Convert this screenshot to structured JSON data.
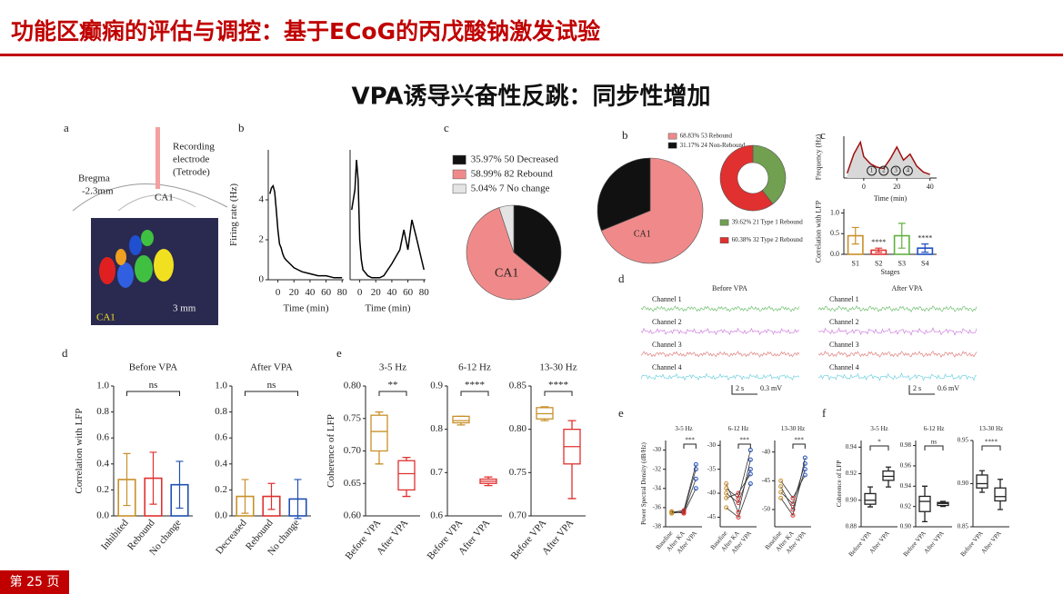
{
  "header": {
    "title": "功能区癫痫的评估与调控：基于ECoG的丙戊酸钠激发试验"
  },
  "slide_title": "VPA诱导兴奋性反跳：同步性增加",
  "page_number": "第 25 页",
  "figures": [
    {
      "type": "schematic",
      "label": "a",
      "texts": [
        "Recording",
        "electrode",
        "(Tetrode)",
        "Bregma",
        "-2.3mm",
        "CA1",
        "CA1",
        "3 mm"
      ]
    },
    {
      "type": "line",
      "label": "b",
      "y_label": "Firing rate (Hz)",
      "x_label": "Time (min)",
      "color": "#000000",
      "x": [
        -10,
        -8,
        -6,
        -4,
        -2,
        0,
        2,
        4,
        6,
        8,
        10,
        15,
        20,
        25,
        30,
        40,
        50,
        60,
        70,
        80
      ],
      "values": [
        4.3,
        4.6,
        4.7,
        4.4,
        3.5,
        2.5,
        1.8,
        1.6,
        1.3,
        1.1,
        1.0,
        0.8,
        0.6,
        0.5,
        0.4,
        0.3,
        0.2,
        0.2,
        0.1,
        0.1
      ],
      "xlim": [
        -12,
        82
      ],
      "ylim": [
        0,
        6.5
      ],
      "xticks": [
        0,
        20,
        40,
        60,
        80
      ],
      "yticks": [
        0,
        2,
        4
      ]
    },
    {
      "type": "line",
      "x_label": "Time (min)",
      "color": "#000000",
      "x": [
        -10,
        -8,
        -6,
        -4,
        -2,
        0,
        2,
        4,
        6,
        8,
        10,
        15,
        20,
        25,
        30,
        40,
        50,
        55,
        60,
        65,
        70,
        80
      ],
      "values": [
        3.5,
        4.0,
        4.5,
        6.0,
        5.0,
        2.0,
        1.0,
        0.5,
        0.4,
        0.3,
        0.2,
        0.1,
        0.1,
        0.1,
        0.2,
        0.8,
        1.5,
        2.5,
        1.5,
        3.0,
        2.2,
        0.5
      ],
      "xlim": [
        -12,
        82
      ],
      "ylim": [
        0,
        6.5
      ],
      "xticks": [
        0,
        20,
        40,
        60,
        80
      ]
    },
    {
      "type": "pie",
      "label": "c",
      "center_text": "CA1",
      "values": [
        35.97,
        58.99,
        5.04
      ],
      "labels": [
        "35.97% 50 Decreased",
        "58.99% 82 Rebound",
        "5.04% 7 No change"
      ],
      "colors": [
        "#111111",
        "#f08a8a",
        "#e4e4e4"
      ]
    },
    {
      "type": "bar",
      "label": "d",
      "title": "Before VPA",
      "y_label": "Correlation with LFP",
      "categories": [
        "Inhibited",
        "Rebound",
        "No change"
      ],
      "values": [
        0.28,
        0.29,
        0.24
      ],
      "errors": [
        0.2,
        0.2,
        0.18
      ],
      "colors": [
        "#c8902a",
        "#e03030",
        "#2050b0"
      ],
      "comparison": "ns",
      "ylim": [
        0,
        1
      ],
      "yticks": [
        {
          "value": 0,
          "label": "0.0"
        },
        {
          "value": 0.2,
          "label": "0.2"
        },
        {
          "value": 0.4,
          "label": "0.4"
        },
        {
          "value": 0.6,
          "label": "0.6"
        },
        {
          "value": 0.8,
          "label": "0.8"
        },
        {
          "value": 1,
          "label": "1.0"
        }
      ]
    },
    {
      "type": "bar",
      "title": "After VPA",
      "categories": [
        "Decreased",
        "Rebound",
        "No change"
      ],
      "values": [
        0.15,
        0.15,
        0.13
      ],
      "errors": [
        0.13,
        0.1,
        0.15
      ],
      "colors": [
        "#c8902a",
        "#e03030",
        "#2050b0"
      ],
      "comparison": "ns",
      "ylim": [
        0,
        1
      ],
      "yticks": [
        {
          "value": 0,
          "label": "0.0"
        },
        {
          "value": 0.2,
          "label": "0.2"
        },
        {
          "value": 0.4,
          "label": "0.4"
        },
        {
          "value": 0.6,
          "label": "0.6"
        },
        {
          "value": 0.8,
          "label": "0.8"
        },
        {
          "value": 1,
          "label": "1.0"
        }
      ]
    },
    {
      "type": "box",
      "label": "e",
      "title": "3-5 Hz",
      "y_label": "Coherence of LFP",
      "significance": "**",
      "categories": [
        "Before VPA",
        "After VPA"
      ],
      "colors": [
        "#c8902a",
        "#e03030"
      ],
      "boxes": [
        [
          0.68,
          0.7,
          0.73,
          0.755,
          0.76
        ],
        [
          0.63,
          0.64,
          0.665,
          0.685,
          0.69
        ]
      ],
      "ylim": [
        0.6,
        0.8
      ],
      "yticks": [
        {
          "value": 0.6,
          "label": "0.60"
        },
        0.65,
        {
          "value": 0.7,
          "label": "0.70"
        },
        0.75,
        {
          "value": 0.8,
          "label": "0.80"
        }
      ]
    },
    {
      "type": "box",
      "title": "6-12 Hz",
      "significance": "****",
      "categories": [
        "Before VPA",
        "After VPA"
      ],
      "colors": [
        "#c8902a",
        "#e03030"
      ],
      "boxes": [
        [
          0.81,
          0.815,
          0.82,
          0.83,
          0.83
        ],
        [
          0.67,
          0.675,
          0.68,
          0.685,
          0.69
        ]
      ],
      "ylim": [
        0.6,
        0.9
      ],
      "yticks": [
        0.6,
        0.7,
        0.8,
        0.9
      ]
    },
    {
      "type": "box",
      "title": "13-30 Hz",
      "significance": "****",
      "categories": [
        "Before VPA",
        "After VPA"
      ],
      "colors": [
        "#c8902a",
        "#e03030"
      ],
      "boxes": [
        [
          0.81,
          0.812,
          0.818,
          0.825,
          0.826
        ],
        [
          0.72,
          0.76,
          0.78,
          0.8,
          0.81
        ]
      ],
      "ylim": [
        0.7,
        0.85
      ],
      "yticks": [
        {
          "value": 0.7,
          "label": "0.70"
        },
        0.75,
        {
          "value": 0.8,
          "label": "0.80"
        },
        0.85
      ]
    },
    {
      "type": "pie",
      "label": "b",
      "center_text": "CA1",
      "values": [
        68.83,
        31.17
      ],
      "labels": [
        "68.83% 53 Rebound",
        "31.17% 24 Non-Rebound"
      ],
      "colors": [
        "#f08a8a",
        "#111111"
      ]
    },
    {
      "type": "donut",
      "values": [
        39.62,
        60.38
      ],
      "labels": [
        "39.62% 21 Type 1 Rebound",
        "60.38% 32 Type 2 Rebound"
      ],
      "colors": [
        "#70a050",
        "#e03030"
      ]
    },
    {
      "type": "line",
      "label": "c",
      "y_label": "Frequency (Hz)",
      "x_label": "Time (min)",
      "color": "#a01010",
      "area": "#d8d8d8",
      "x": [
        -10,
        -6,
        -2,
        0,
        4,
        8,
        12,
        16,
        20,
        24,
        28,
        32,
        36,
        40
      ],
      "values": [
        0.4,
        2.0,
        3.0,
        1.8,
        1.2,
        0.9,
        0.8,
        1.6,
        2.6,
        1.5,
        2.0,
        1.0,
        0.5,
        0.3
      ],
      "xlim": [
        -12,
        44
      ],
      "ylim": [
        0,
        3.5
      ],
      "xticks": [
        0,
        20,
        40
      ],
      "stage_labels": [
        "1",
        "2",
        "3",
        "4"
      ]
    },
    {
      "type": "bar",
      "y_label": "Correlation with LFP",
      "x_label": "Stages",
      "categories": [
        "S1",
        "S2",
        "S3",
        "S4"
      ],
      "values": [
        0.45,
        0.1,
        0.45,
        0.15
      ],
      "errors": [
        0.2,
        0.05,
        0.3,
        0.1
      ],
      "colors": [
        "#c8902a",
        "#e03030",
        "#60b040",
        "#2050c0"
      ],
      "significance": [
        null,
        "****",
        null,
        "****"
      ],
      "ylim": [
        0,
        1.1
      ],
      "yticks": [
        {
          "value": 0,
          "label": "0.0"
        },
        {
          "value": 0.5,
          "label": "0.5"
        },
        {
          "value": 1,
          "label": "1.0"
        }
      ]
    },
    {
      "type": "traces",
      "label": "d",
      "conditions": [
        "Before VPA",
        "After VPA"
      ],
      "channels": [
        "Channel 1",
        "Channel 2",
        "Channel 3",
        "Channel 4"
      ],
      "channel_colors": [
        "#70c070",
        "#d080e0",
        "#e08080",
        "#70d0e0"
      ],
      "scale_bars": [
        [
          "2 s",
          "0.3 mV"
        ],
        [
          "2 s",
          "0.6 mV"
        ]
      ]
    },
    {
      "type": "paired",
      "label": "e",
      "title": "3-5 Hz",
      "y_label": "Power Spectral Density (dB/Hz)",
      "significance": "***",
      "categories": [
        "Baseline",
        "After KA",
        "After VPA"
      ],
      "colors": [
        "#c8902a",
        "#e03030",
        "#2050c0"
      ],
      "lines": [
        [
          -36.5,
          -36.5,
          -33
        ],
        [
          -36.6,
          -36.4,
          -32
        ],
        [
          -36.4,
          -36.6,
          -34
        ],
        [
          -36.5,
          -36.3,
          -31.5
        ]
      ],
      "ylim": [
        -38,
        -29
      ],
      "yticks": [
        -30,
        -32,
        -34,
        -36,
        -38
      ]
    },
    {
      "type": "paired",
      "title": "6-12 Hz",
      "significance": "***",
      "categories": [
        "Baseline",
        "After KA",
        "After VPA"
      ],
      "colors": [
        "#c8902a",
        "#e03030",
        "#2050c0"
      ],
      "lines": [
        [
          -40,
          -42,
          -35
        ],
        [
          -38,
          -44,
          -33
        ],
        [
          -41,
          -40,
          -36
        ],
        [
          -43,
          -45,
          -38
        ],
        [
          -39,
          -41,
          -31
        ]
      ],
      "ylim": [
        -47,
        -29
      ],
      "yticks": [
        -30,
        -35,
        -40,
        -45
      ]
    },
    {
      "type": "paired",
      "title": "13-30 Hz",
      "significance": "***",
      "categories": [
        "Baseline",
        "After KA",
        "After VPA"
      ],
      "colors": [
        "#c8902a",
        "#e03030",
        "#2050c0"
      ],
      "lines": [
        [
          -47,
          -49,
          -42
        ],
        [
          -46,
          -50,
          -43
        ],
        [
          -48,
          -51,
          -41
        ],
        [
          -45,
          -48,
          -44
        ]
      ],
      "ylim": [
        -53,
        -38
      ],
      "yticks": [
        -40,
        -45,
        -50
      ]
    },
    {
      "type": "box",
      "label": "f",
      "title": "3-5 Hz",
      "y_label": "Coherence of LFP",
      "significance": "*",
      "categories": [
        "Before VPA",
        "After VPA"
      ],
      "colors": [
        "#222222",
        "#222222"
      ],
      "boxes": [
        [
          0.895,
          0.897,
          0.9,
          0.905,
          0.91
        ],
        [
          0.91,
          0.915,
          0.918,
          0.922,
          0.925
        ]
      ],
      "ylim": [
        0.88,
        0.945
      ],
      "yticks": [
        0.88,
        {
          "value": 0.9,
          "label": "0.90"
        },
        0.92,
        0.94
      ]
    },
    {
      "type": "box",
      "title": "6-12 Hz",
      "significance": "ns",
      "categories": [
        "Before VPA",
        "After VPA"
      ],
      "colors": [
        "#222222",
        "#222222"
      ],
      "boxes": [
        [
          0.905,
          0.915,
          0.925,
          0.93,
          0.94
        ],
        [
          0.92,
          0.921,
          0.923,
          0.924,
          0.925
        ]
      ],
      "ylim": [
        0.9,
        0.985
      ],
      "yticks": [
        {
          "value": 0.9,
          "label": "0.90"
        },
        0.92,
        0.94,
        0.96,
        0.98
      ]
    },
    {
      "type": "box",
      "title": "13-30 Hz",
      "significance": "****",
      "categories": [
        "Before VPA",
        "After VPA"
      ],
      "colors": [
        "#222222",
        "#222222"
      ],
      "boxes": [
        [
          0.89,
          0.895,
          0.9,
          0.91,
          0.915
        ],
        [
          0.87,
          0.88,
          0.885,
          0.895,
          0.905
        ]
      ],
      "ylim": [
        0.85,
        0.95
      ],
      "yticks": [
        0.85,
        {
          "value": 0.9,
          "label": "0.90"
        },
        0.95
      ]
    }
  ]
}
